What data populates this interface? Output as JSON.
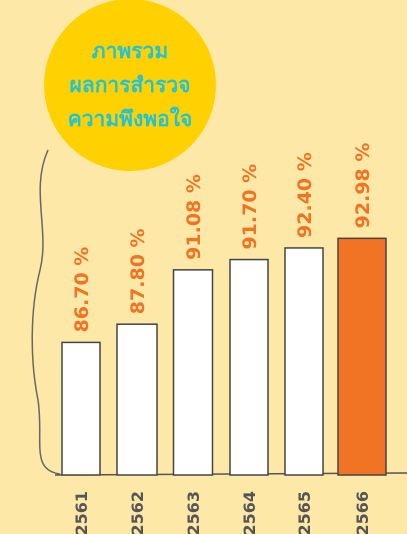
{
  "chart_data": {
    "type": "bar",
    "title": [
      "ภาพรวม",
      "ผลการสำรวจ",
      "ความพึงพอใจ"
    ],
    "categories": [
      "2561",
      "2562",
      "2563",
      "2564",
      "2565",
      "2566"
    ],
    "values": [
      86.7,
      87.8,
      91.08,
      91.7,
      92.4,
      92.98
    ],
    "value_labels": [
      "86.70 %",
      "87.80 %",
      "91.08 %",
      "91.70 %",
      "92.40 %",
      "92.98 %"
    ],
    "colors": [
      "#ffffff",
      "#ffffff",
      "#ffffff",
      "#ffffff",
      "#ffffff",
      "#f07423"
    ],
    "ylim": [
      78.7,
      100
    ]
  }
}
